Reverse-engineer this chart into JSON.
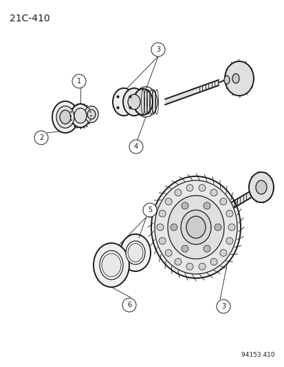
{
  "title": "21C-410",
  "footer": "94153 410",
  "bg_color": "#ffffff",
  "fg_color": "#1a1a1a",
  "title_fontsize": 10,
  "footer_fontsize": 6.5,
  "lw_main": 0.9,
  "lw_thick": 1.4,
  "lw_thin": 0.6
}
